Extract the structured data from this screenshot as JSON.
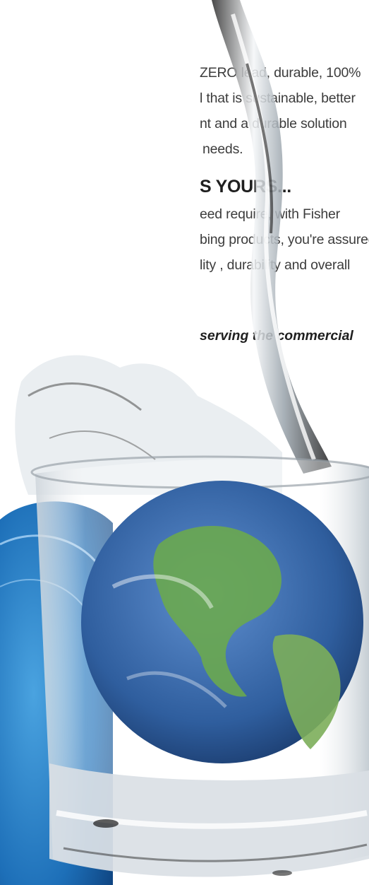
{
  "paragraph_1": [
    "ZERO lead, durable, 100%",
    "l that is sustainable, better",
    "nt and a durable solution",
    "needs."
  ],
  "heading": "S YOURS...",
  "paragraph_2": [
    "eed require, with Fisher",
    "bing products, you're assured",
    "lity , durability and overall"
  ],
  "tagline": "serving the commercial",
  "illustration": {
    "description_icon": "globe-in-water-glass",
    "colors": {
      "ocean": "#2f5e9e",
      "land": "#6aa84f",
      "pool_blue": "#1d6fb8",
      "water": "#dfe7ee"
    }
  }
}
